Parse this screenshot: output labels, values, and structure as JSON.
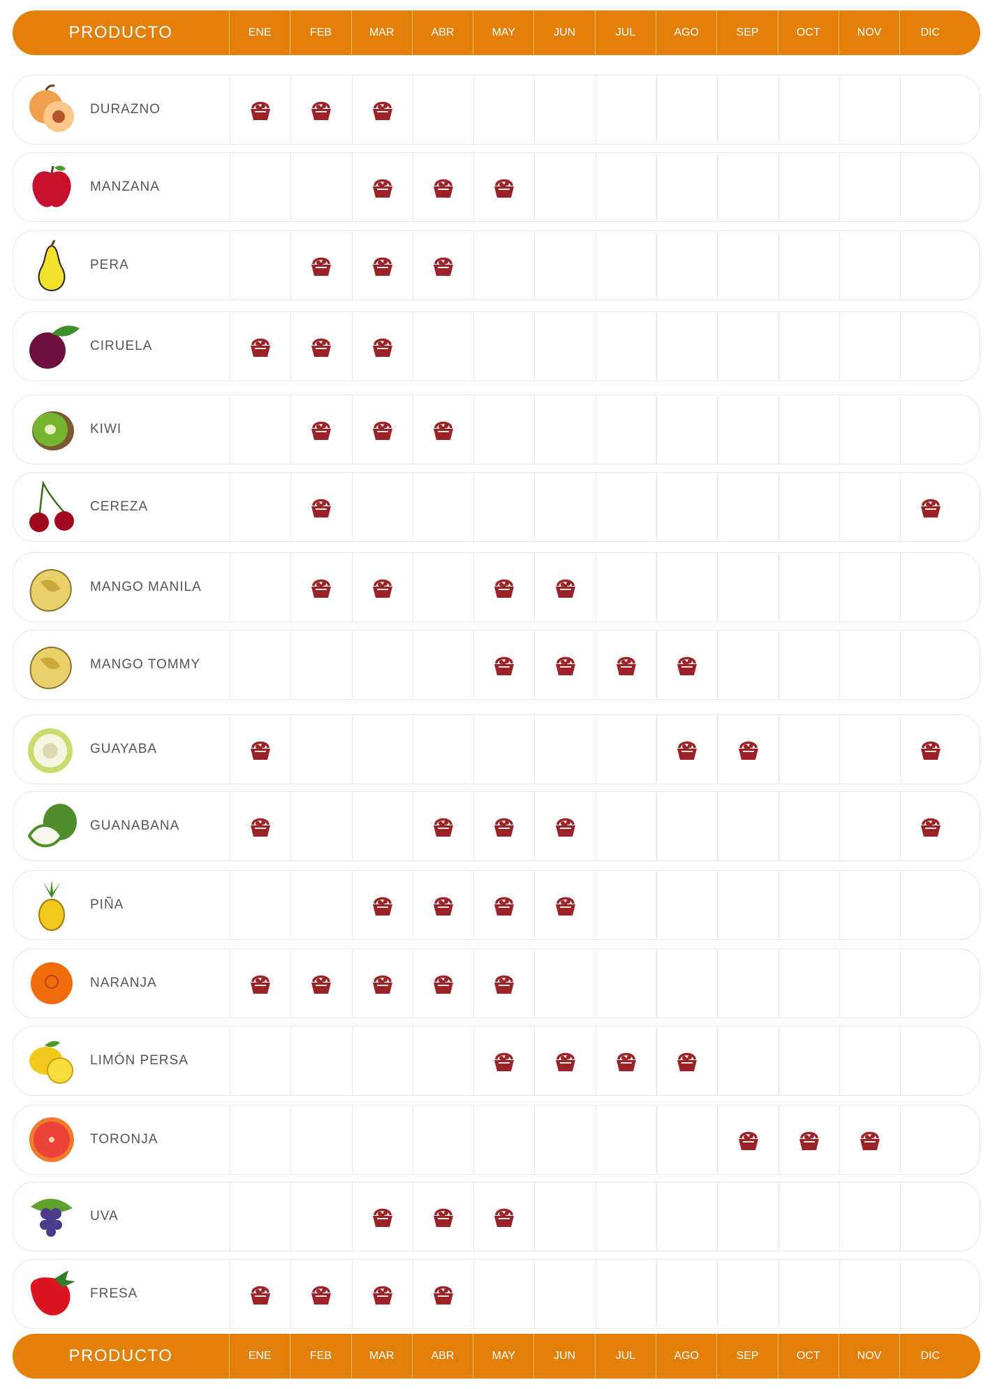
{
  "header": {
    "product_label": "PRODUCTO",
    "months": [
      "ENE",
      "FEB",
      "MAR",
      "ABR",
      "MAY",
      "JUN",
      "JUL",
      "AGO",
      "SEP",
      "OCT",
      "NOV",
      "DIC"
    ]
  },
  "colors": {
    "accent": "#e2800a",
    "basket": "#9b2226",
    "row_border": "#e6e6e6",
    "label_text": "#555555"
  },
  "rows": [
    {
      "name": "DURAZNO",
      "icon": "peach-icon",
      "months": [
        "ENE",
        "FEB",
        "MAR"
      ]
    },
    {
      "name": "MANZANA",
      "icon": "apple-icon",
      "months": [
        "MAR",
        "ABR",
        "MAY"
      ]
    },
    {
      "name": "PERA",
      "icon": "pear-icon",
      "months": [
        "FEB",
        "MAR",
        "ABR"
      ]
    },
    {
      "name": "CIRUELA",
      "icon": "plum-icon",
      "months": [
        "ENE",
        "FEB",
        "MAR"
      ]
    },
    {
      "name": "KIWI",
      "icon": "kiwi-icon",
      "months": [
        "FEB",
        "MAR",
        "ABR"
      ]
    },
    {
      "name": "CEREZA",
      "icon": "cherry-icon",
      "months": [
        "FEB",
        "DIC"
      ]
    },
    {
      "name": "MANGO MANILA",
      "icon": "mango-icon",
      "months": [
        "FEB",
        "MAR",
        "MAY",
        "JUN"
      ]
    },
    {
      "name": "MANGO TOMMY",
      "icon": "mango-icon",
      "months": [
        "MAY",
        "JUN",
        "JUL",
        "AGO"
      ]
    },
    {
      "name": "GUAYABA",
      "icon": "guava-icon",
      "months": [
        "ENE",
        "AGO",
        "SEP",
        "DIC"
      ]
    },
    {
      "name": "GUANABANA",
      "icon": "soursop-icon",
      "months": [
        "ENE",
        "ABR",
        "MAY",
        "JUN",
        "DIC"
      ]
    },
    {
      "name": "PIÑA",
      "icon": "pineapple-icon",
      "months": [
        "MAR",
        "ABR",
        "MAY",
        "JUN"
      ]
    },
    {
      "name": "NARANJA",
      "icon": "orange-icon",
      "months": [
        "ENE",
        "FEB",
        "MAR",
        "ABR",
        "MAY"
      ]
    },
    {
      "name": "LIMÓN PERSA",
      "icon": "lemon-icon",
      "months": [
        "MAY",
        "JUN",
        "JUL",
        "AGO"
      ]
    },
    {
      "name": "TORONJA",
      "icon": "grapefruit-icon",
      "months": [
        "SEP",
        "OCT",
        "NOV"
      ]
    },
    {
      "name": "UVA",
      "icon": "grape-icon",
      "months": [
        "MAR",
        "ABR",
        "MAY"
      ]
    },
    {
      "name": "FRESA",
      "icon": "strawberry-icon",
      "months": [
        "ENE",
        "FEB",
        "MAR",
        "ABR"
      ]
    }
  ]
}
